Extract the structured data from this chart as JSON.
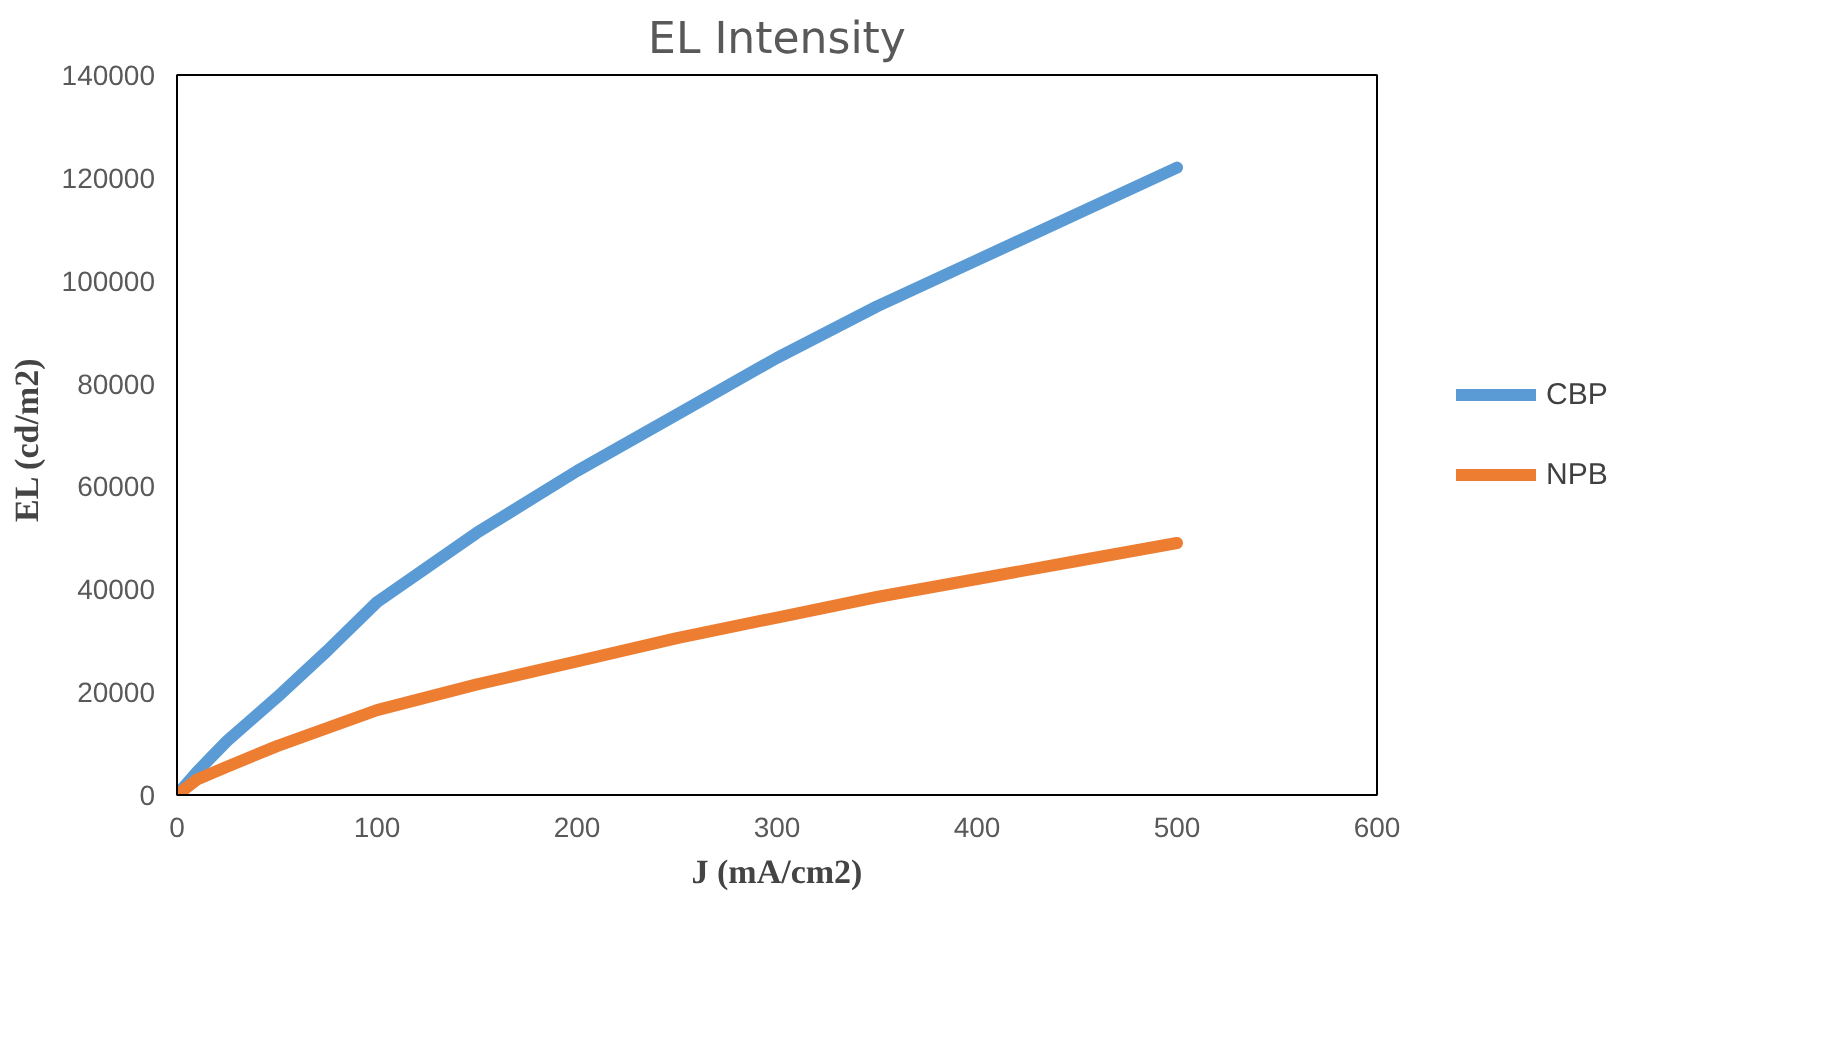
{
  "chart_data": {
    "type": "line",
    "title": "EL Intensity",
    "xlabel": "J (mA/cm2)",
    "ylabel": "EL  (cd/m2)",
    "xlim": [
      0,
      600
    ],
    "xticks": [
      0,
      100,
      200,
      300,
      400,
      500,
      600
    ],
    "ylim": [
      0,
      140000
    ],
    "yticks": [
      0,
      20000,
      40000,
      60000,
      80000,
      100000,
      120000,
      140000
    ],
    "grid": false,
    "legend": "right",
    "marker": "none",
    "line_style": "solid",
    "series": [
      {
        "name": "CBP",
        "color": "#5b9bd5",
        "x": [
          0,
          10,
          25,
          50,
          75,
          100,
          150,
          200,
          250,
          300,
          350,
          400,
          450,
          500
        ],
        "values": [
          0,
          4500,
          10500,
          19000,
          28000,
          37500,
          51000,
          63000,
          74000,
          85000,
          95000,
          104000,
          113000,
          122000
        ]
      },
      {
        "name": "NPB",
        "color": "#ed7d31",
        "x": [
          0,
          10,
          25,
          50,
          75,
          100,
          150,
          200,
          250,
          300,
          350,
          400,
          450,
          500
        ],
        "values": [
          0,
          3000,
          5500,
          9500,
          13000,
          16500,
          21500,
          26000,
          30500,
          34500,
          38500,
          42000,
          45500,
          49000
        ]
      }
    ]
  }
}
